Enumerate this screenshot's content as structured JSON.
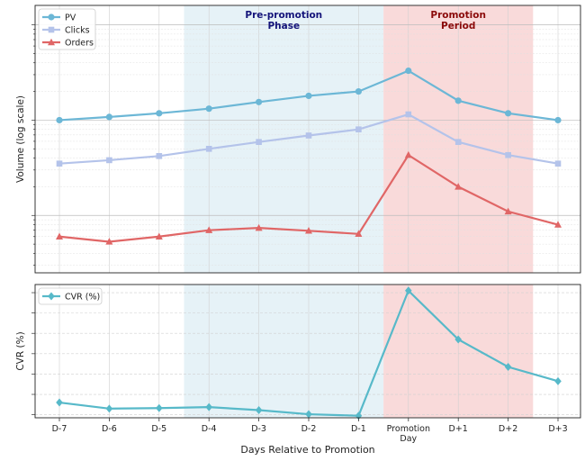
{
  "chart_data": [
    {
      "type": "line",
      "ylabel": "Volume (log scale)",
      "yscale": "log",
      "ylim": [
        250,
        160000
      ],
      "grid": true,
      "legend_position": "top-left",
      "categories": [
        "D-7",
        "D-6",
        "D-5",
        "D-4",
        "D-3",
        "D-2",
        "D-1",
        "Promotion\nDay",
        "D+1",
        "D+2",
        "D+3"
      ],
      "series": [
        {
          "name": "PV",
          "color": "#6cb7d6",
          "marker": "circle",
          "values": [
            10000,
            10800,
            11800,
            13200,
            15500,
            18000,
            20000,
            33000,
            16000,
            11800,
            10000
          ]
        },
        {
          "name": "Clicks",
          "color": "#b4c3ea",
          "marker": "square",
          "values": [
            3500,
            3800,
            4200,
            5000,
            5900,
            6900,
            8000,
            11500,
            5900,
            4300,
            3500
          ]
        },
        {
          "name": "Orders",
          "color": "#e06666",
          "marker": "triangle",
          "values": [
            600,
            530,
            600,
            700,
            740,
            690,
            640,
            4300,
            2000,
            1100,
            800
          ]
        }
      ],
      "shaded_regions": [
        {
          "label": "Pre-promotion\nPhase",
          "from": 2.5,
          "to": 6.5,
          "color": "#e6f2f7",
          "text_color": "#14147a"
        },
        {
          "label": "Promotion\nPeriod",
          "from": 6.5,
          "to": 9.5,
          "color": "#f9dada",
          "text_color": "#8b0a0a"
        }
      ]
    },
    {
      "type": "line",
      "xlabel": "Days Relative to Promotion",
      "ylabel": "CVR (%)",
      "ylim": [
        -0.3,
        12.8
      ],
      "grid": true,
      "legend_position": "top-left",
      "categories": [
        "D-7",
        "D-6",
        "D-5",
        "D-4",
        "D-3",
        "D-2",
        "D-1",
        "Promotion\nDay",
        "D+1",
        "D+2",
        "D+3"
      ],
      "series": [
        {
          "name": "CVR (%)",
          "color": "#57b9c9",
          "marker": "diamond",
          "values": [
            1.2,
            0.6,
            0.65,
            0.75,
            0.45,
            0.05,
            -0.1,
            12.2,
            7.4,
            4.7,
            3.3
          ]
        }
      ],
      "shaded_regions": [
        {
          "from": 2.5,
          "to": 6.5,
          "color": "#e6f2f7"
        },
        {
          "from": 6.5,
          "to": 9.5,
          "color": "#f9dada"
        }
      ]
    }
  ]
}
